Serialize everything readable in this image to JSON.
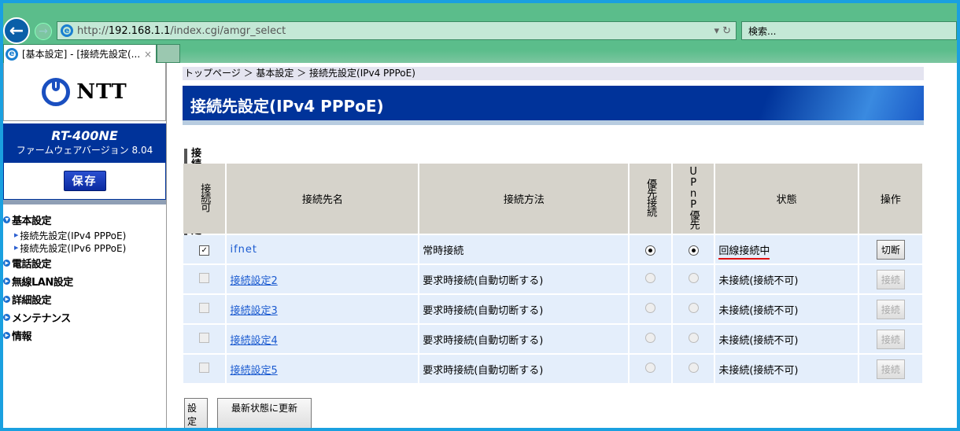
{
  "browser": {
    "url_prefix": "http://",
    "url_host": "192.168.1.1",
    "url_path": "/index.cgi/amgr_select",
    "search_placeholder": "検索...",
    "tab_title": "[基本設定] - [接続先設定(...",
    "tab_close": "×",
    "addr_tools": "▾ ↻"
  },
  "sidebar": {
    "logo_text": "NTT",
    "model": "RT-400NE",
    "firmware": "ファームウェアバージョン 8.04",
    "save_label": "保存",
    "menu": [
      {
        "label": "基本設定",
        "expanded": true,
        "children": [
          "接続先設定(IPv4 PPPoE)",
          "接続先設定(IPv6 PPPoE)"
        ]
      },
      {
        "label": "電話設定"
      },
      {
        "label": "無線LAN設定"
      },
      {
        "label": "詳細設定"
      },
      {
        "label": "メンテナンス"
      },
      {
        "label": "情報"
      }
    ]
  },
  "main": {
    "breadcrumb": "トップページ ＞ 基本設定 ＞ 接続先設定(IPv4 PPPoE)",
    "title": "接続先設定(IPv4 PPPoE)",
    "section": "接続先の選択設定",
    "columns": [
      "接続可",
      "接続先名",
      "接続方法",
      "優先接続",
      "UPnP優先",
      "状態",
      "操作"
    ],
    "rows": [
      {
        "enabled": true,
        "name": "ifnet",
        "method": "常時接続",
        "priority": true,
        "upnp": true,
        "status": "回線接続中",
        "action": "切断",
        "active": true
      },
      {
        "enabled": false,
        "name": "接続設定2",
        "method": "要求時接続(自動切断する)",
        "priority": false,
        "upnp": false,
        "status": "未接続(接続不可)",
        "action": "接続",
        "active": false
      },
      {
        "enabled": false,
        "name": "接続設定3",
        "method": "要求時接続(自動切断する)",
        "priority": false,
        "upnp": false,
        "status": "未接続(接続不可)",
        "action": "接続",
        "active": false
      },
      {
        "enabled": false,
        "name": "接続設定4",
        "method": "要求時接続(自動切断する)",
        "priority": false,
        "upnp": false,
        "status": "未接続(接続不可)",
        "action": "接続",
        "active": false
      },
      {
        "enabled": false,
        "name": "接続設定5",
        "method": "要求時接続(自動切断する)",
        "priority": false,
        "upnp": false,
        "status": "未接続(接続不可)",
        "action": "接続",
        "active": false
      }
    ],
    "set_label": "設定",
    "refresh_label": "最新状態に更新"
  },
  "colors": {
    "banner": "#00339a",
    "status_underline": "#e01010",
    "chrome": "#5bbd8b"
  }
}
